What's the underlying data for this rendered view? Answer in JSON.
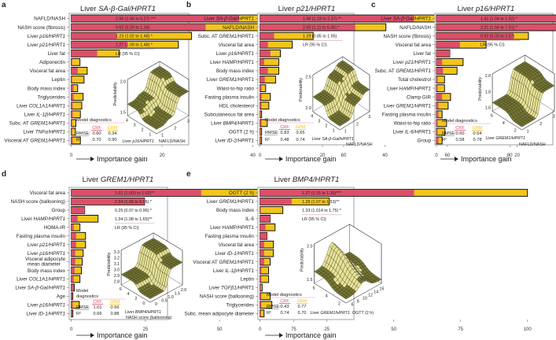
{
  "colors": {
    "crf": "#dc4f6a",
    "gbm": "#f3c51b",
    "surface_dark": "#77772f",
    "surface_light": "#e8e394"
  },
  "common": {
    "xlabel": "Importance gain",
    "diag_title": "Model diagnostics",
    "crf": "CRF",
    "gbm": "GBM",
    "rmse": "RMSE:",
    "r2": "R²",
    "lr_header": "LR (95 % CI)"
  },
  "chart_data": [
    {
      "type": "bar",
      "panel": "a",
      "title_prefix": "Liver ",
      "title_gene": "SA-β-Gal/HPRT1",
      "xlim": [
        0,
        60
      ],
      "xticks": [
        "0",
        "20",
        "40",
        "60"
      ],
      "xtick_values": [
        0,
        20,
        40,
        60
      ],
      "categories": [
        "NAFLD/NASH",
        "NASH score (fibrosis)",
        "Liver p16/HPRT1",
        "Liver p21/HPRT1",
        "Liver fat",
        "Adiponectin",
        "Visceral fat area",
        "Leptin",
        "Body mass index",
        "Triglycerides",
        "Liver COL1A1/HPRT1",
        "Liver IL-1β/HPRT1",
        "Subc. AT GREM1/HPRT1",
        "Liver TNFα/HPRT1",
        "Visceral AT GREM1/HPRT1"
      ],
      "series": [
        {
          "name": "CRF",
          "values": [
            37,
            29.6,
            10,
            12.3,
            5.7,
            0.2,
            1.4,
            0.2,
            0.5,
            0.5,
            0.3,
            0.3,
            0.2,
            0.2,
            0.3
          ]
        },
        {
          "name": "GBM",
          "values": [
            57.7,
            47.5,
            26.5,
            23.6,
            10.6,
            1.9,
            3.5,
            2.8,
            1.4,
            2.6,
            2.3,
            2,
            1,
            0.9,
            2
          ]
        }
      ],
      "lr": [
        "2.96 (1.66 to 5.27) ***",
        "0.62 (0.29 to 1.34)",
        "1.23 (1.02 to 1.48) *",
        "1.27 (1.09 to 1.48) *"
      ],
      "diagnostics": {
        "rmse": [
          "0.60",
          "0.34"
        ],
        "r2": [
          "0.70",
          "0.90"
        ]
      },
      "surface": {
        "zlabel": "Predictability",
        "zticks": [
          "2.0",
          "1.5"
        ],
        "ulabel": "Liver p16/HPRT1",
        "uticks": [
          "1",
          "2",
          "3",
          "4"
        ],
        "vlabel": "NAFLD/NASH",
        "vticks": [
          "1",
          "2",
          "3"
        ]
      }
    },
    {
      "type": "bar",
      "panel": "b",
      "title_prefix": "Liver ",
      "title_gene": "p21/HPRT1",
      "xlim": [
        0,
        85
      ],
      "xticks": [
        "0",
        "20",
        "40",
        "60",
        "80"
      ],
      "xtick_values": [
        0,
        20,
        40,
        60,
        80
      ],
      "categories": [
        "Liver SA-β-Gal/HPRT1",
        "NAFLD/NASH",
        "Subc. AT GREM1/HPRT1",
        "Visceral fat area",
        "Liver p16/HPRT1",
        "Liver HAMP/HPRT1",
        "Body mass index",
        "Liver GREM1/HPRT1",
        "Waist-to-hip ratio",
        "Fasting plasma insulin",
        "HDL cholesterol",
        "Subcutaneous fat area",
        "Liver BMP4/HPRT1",
        "OGTT (2 h)",
        "Liver ID-2/HPRT1"
      ],
      "series": [
        {
          "name": "CRF",
          "values": [
            49.3,
            30.5,
            4.5,
            2.5,
            3.3,
            1.3,
            2.5,
            1.5,
            0.5,
            0.5,
            0.5,
            0.2,
            0.5,
            0.2,
            0.2
          ]
        },
        {
          "name": "GBM",
          "values": [
            84.4,
            40.3,
            17,
            10.3,
            6.5,
            6,
            6,
            5,
            1.8,
            3.3,
            2.8,
            0.5,
            2.3,
            0.5,
            0.5
          ]
        }
      ],
      "lr": [
        "1.68 (1.19 to 2.37) **",
        "2.65 (1.11 to 6.36) *",
        "1.29 (0.85 to 1.95)"
      ],
      "diagnostics": {
        "rmse": [
          "0.83",
          "0.65"
        ],
        "r2": [
          "0.48",
          "0.74"
        ]
      },
      "surface": {
        "zlabel": "Predictability",
        "zticks": [
          "2.5",
          "2.0"
        ],
        "ulabel": "Liver SA-β-Gal/HPRT1",
        "uticks": [
          "1",
          "2",
          "3",
          "4"
        ],
        "vlabel": "NAFLD/NASH",
        "vticks": [
          "1",
          "2",
          "3"
        ]
      }
    },
    {
      "type": "bar",
      "panel": "c",
      "title_prefix": "Liver ",
      "title_gene": "p16/HPRT1",
      "xlim": [
        0,
        70
      ],
      "xticks": [
        "0",
        "20",
        "40",
        "60"
      ],
      "xtick_values": [
        0,
        20,
        40,
        60
      ],
      "categories": [
        "Liver SA-β-Gal/HPRT1",
        "NAFLD/NASH",
        "NASH score (fibrosis)",
        "Visceral fat area",
        "Liver fat",
        "Liver p21/HPRT1",
        "Subc. AT GREM1/HPRT1",
        "Total cholestrol",
        "Liver HAMP/HPRT1",
        "Clamp GIR",
        "Liver GREM1/HPRT1",
        "Fasting plasma insulin",
        "Waist-to-hip ratio",
        "Liver IL-6/HPRT1",
        "Group"
      ],
      "series": [
        {
          "name": "CRF",
          "values": [
            31.2,
            31.2,
            19.1,
            5.8,
            3.3,
            1.4,
            1.6,
            0.3,
            0.3,
            1.4,
            0.5,
            0.5,
            0.3,
            0.3,
            0.5
          ]
        },
        {
          "name": "GBM",
          "values": [
            65,
            50.3,
            22.8,
            12.3,
            3.3,
            6.6,
            5.1,
            2,
            2,
            3.5,
            2.9,
            1.4,
            2.5,
            2.1,
            1.4
          ]
        }
      ],
      "lr": [
        "1.41 (1.04 to 1.92) *",
        "3.31 (1.56 to 7.01) *",
        "0.92 (0.33 to 2.57)"
      ],
      "diagnostics": {
        "rmse": [
          "0.60",
          "0.54"
        ],
        "r2": [
          "0.58",
          "0.78"
        ]
      },
      "surface": {
        "zlabel": "Predictability",
        "zticks": [
          "2.0",
          "1.8",
          "1.6"
        ],
        "ulabel": "Liver GREM1/HPRT1",
        "uticks": [
          "2",
          "4",
          "6"
        ],
        "vlabel": "NAFLD/NASH",
        "vticks": [
          "1",
          "2",
          "3"
        ]
      }
    },
    {
      "type": "bar",
      "panel": "d",
      "title_prefix": "Liver ",
      "title_gene": "GREM1/HPRT1",
      "xlim": [
        0,
        95
      ],
      "xticks": [
        "0",
        "25",
        "50",
        "75"
      ],
      "xtick_values": [
        0,
        25,
        50,
        75
      ],
      "categories": [
        "Visceral fat area",
        "NASH score (ballooning)",
        "Group",
        "Liver HAMP/HPRT1",
        "HOMA-IR",
        "Fasting plasma insulin",
        "Liver p21/HPRT1",
        "Liver p16/HPRT1",
        "Visceral adipocyte mean diameter",
        "Body mass index",
        "Liver COL1A1/HPRT1",
        "Liver SA-β-Gal/HPRT1",
        "Age",
        "Liver p16/HPRT1",
        "Liver ID-1/HPRT1"
      ],
      "series": [
        {
          "name": "CRF",
          "values": [
            43.8,
            24.7,
            4.5,
            2.1,
            0.8,
            1.6,
            1.6,
            1.3,
            1.3,
            1.1,
            0.8,
            0.8,
            0.3,
            0.5,
            0.3
          ]
        },
        {
          "name": "GBM",
          "values": [
            92,
            24.7,
            4.5,
            9,
            2.9,
            4.8,
            4.8,
            4,
            3.7,
            3.4,
            2.9,
            1,
            0.5,
            2.7,
            0.5
          ]
        }
      ],
      "lr": [
        "1.01 (1.003 to 1.02)**",
        "2.34 (1.08 to 5.06) *",
        "0.25 (0.07 to 0.96) *",
        "1.34 (1.08 to 1.65)**"
      ],
      "diagnostics": {
        "rmse": [
          "1.01",
          "0.56"
        ],
        "r2": [
          "0.66",
          "0.88"
        ]
      },
      "surface": {
        "zlabel": "Predictability",
        "zticks": [
          "3.3",
          "3.2",
          "3.1",
          "3.0",
          "2.9",
          "2.8"
        ],
        "ulabel": "Liver BMP4/HPRT1",
        "uticks": [
          "0",
          "2",
          "4",
          "6"
        ],
        "vlabel": "NASH score (ballooning)",
        "vticks": [
          "0",
          "0.5",
          "1.0",
          "1.5",
          "2.0"
        ]
      }
    },
    {
      "type": "bar",
      "panel": "e",
      "title_prefix": "Liver ",
      "title_gene": "BMP4/HPRT1",
      "xlim": [
        0,
        100
      ],
      "xticks": [
        "0",
        "25",
        "50",
        "75",
        "100"
      ],
      "xtick_values": [
        0,
        25,
        50,
        75,
        100
      ],
      "categories": [
        "OGTT (2 h)",
        "Liver GREM1/HPRT1",
        "Body mass index",
        "IL-6",
        "Liver HAMP/HPRT1",
        "Fasting plasma insulin",
        "Visceral fat area",
        "Liver ID-1/HPRT1",
        "Visceral AT GREM1/HPRT1",
        "Liver IL-1β/HPRT1",
        "Leptin",
        "Liver TGFβ1/HPRT1",
        "NASH score (ballooning)",
        "Triglycerides",
        "Subc. mean adipocyte diameter"
      ],
      "series": [
        {
          "name": "CRF",
          "values": [
            57.6,
            11.8,
            0.2,
            3.8,
            2,
            2.6,
            1.5,
            1.5,
            1.5,
            0.5,
            0.5,
            0.3,
            0.5,
            0.5,
            0.3
          ]
        },
        {
          "name": "GBM",
          "values": [
            100,
            25.9,
            8.5,
            3.8,
            5.6,
            2.6,
            5,
            5,
            3.8,
            3.2,
            3.2,
            0.8,
            3.8,
            4.4,
            1.5
          ]
        }
      ],
      "lr": [
        "1.27 (1.15 to 1.39)***",
        "1.28 (1.07 to 1.53)**",
        "1.33 (1.014 to 1.75) *"
      ],
      "diagnostics": {
        "rmse": [
          "0.43",
          "0.77"
        ],
        "r2": [
          "0.74",
          "0.70"
        ]
      },
      "surface": {
        "zlabel": "Predictability",
        "zticks": [
          "2.0",
          "1.5"
        ],
        "ulabel": "Liver GREM1/HPRT1",
        "uticks": [
          "2",
          "4",
          "6"
        ],
        "vlabel": "OGTT (2 h)",
        "vticks": [
          "6",
          "8",
          "10",
          "12",
          "14",
          "16"
        ]
      }
    }
  ]
}
